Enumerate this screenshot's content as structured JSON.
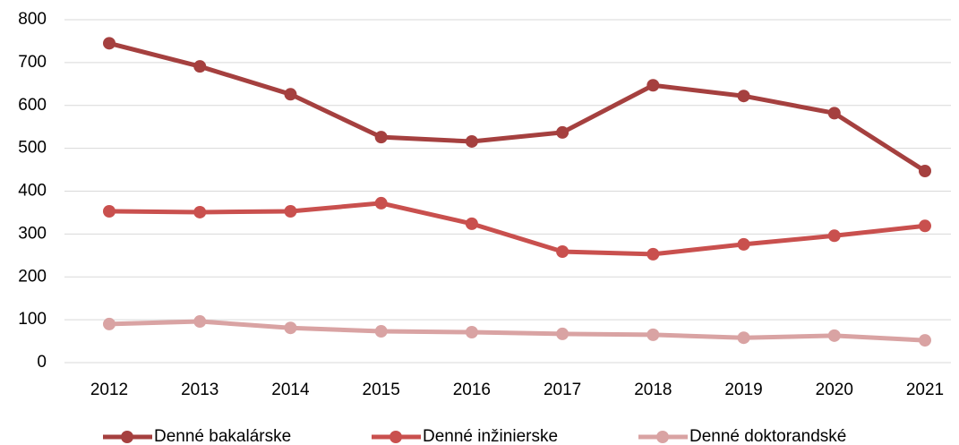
{
  "chart_data": {
    "type": "line",
    "categories": [
      "2012",
      "2013",
      "2014",
      "2015",
      "2016",
      "2017",
      "2018",
      "2019",
      "2020",
      "2021"
    ],
    "series": [
      {
        "name": "Denné bakalárske",
        "color": "#a5403f",
        "values": [
          745,
          691,
          626,
          526,
          516,
          537,
          647,
          622,
          582,
          447
        ]
      },
      {
        "name": "Denné inžinierske",
        "color": "#c9504e",
        "values": [
          353,
          351,
          353,
          372,
          324,
          259,
          253,
          276,
          296,
          319
        ]
      },
      {
        "name": "Denné doktorandské",
        "color": "#d9a3a3",
        "values": [
          90,
          96,
          81,
          73,
          71,
          67,
          65,
          58,
          63,
          52
        ]
      }
    ],
    "ylim": [
      0,
      800
    ],
    "yticks": [
      0,
      100,
      200,
      300,
      400,
      500,
      600,
      700,
      800
    ],
    "grid": true,
    "legend": "bottom"
  }
}
